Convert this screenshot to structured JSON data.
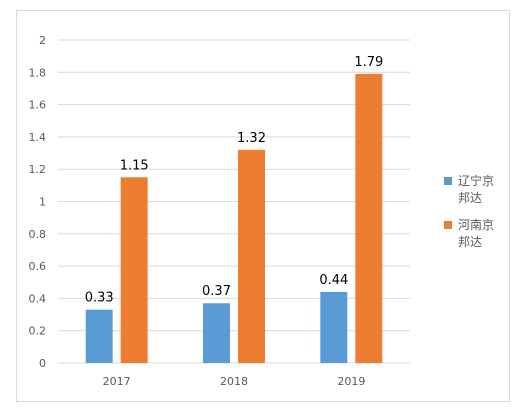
{
  "chart_data": {
    "type": "bar",
    "categories": [
      "2017",
      "2018",
      "2019"
    ],
    "series": [
      {
        "name": "辽宁京邦达",
        "values": [
          0.33,
          0.37,
          0.44
        ],
        "color": "#5b9bd5",
        "labels": [
          "0.33",
          "0.37",
          "0.44"
        ]
      },
      {
        "name": "河南京邦达",
        "values": [
          1.15,
          1.32,
          1.79
        ],
        "color": "#ed7d31",
        "labels": [
          "1.15",
          "1.32",
          "1.79"
        ]
      }
    ],
    "y_ticks": [
      "0",
      "0.2",
      "0.4",
      "0.6",
      "0.8",
      "1",
      "1.2",
      "1.4",
      "1.6",
      "1.8",
      "2"
    ],
    "ylim": [
      0,
      2
    ],
    "grid": true,
    "legend_position": "right",
    "title": "",
    "xlabel": "",
    "ylabel": ""
  }
}
